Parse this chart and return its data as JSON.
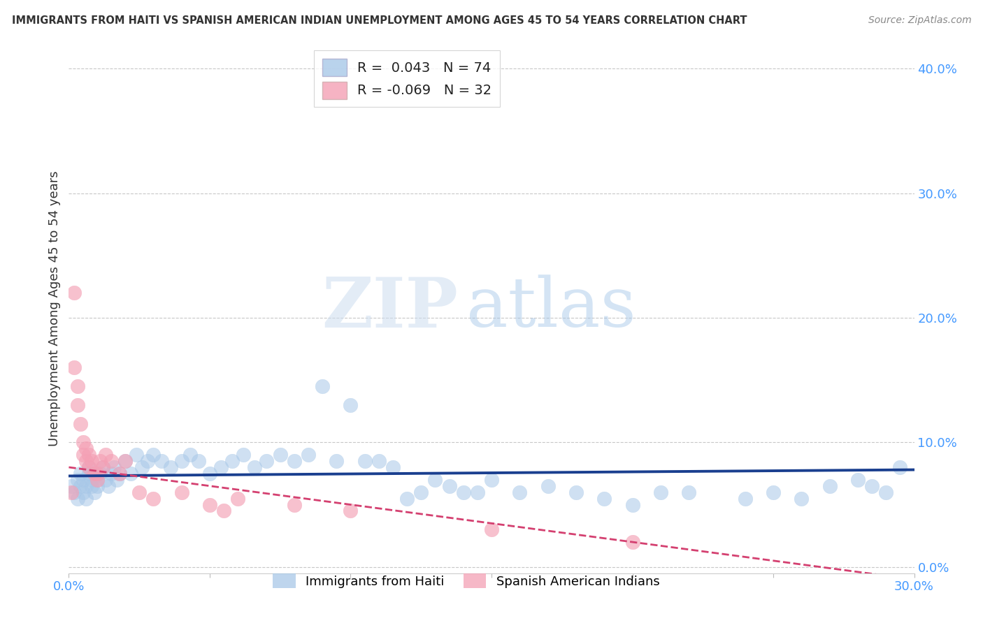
{
  "title": "IMMIGRANTS FROM HAITI VS SPANISH AMERICAN INDIAN UNEMPLOYMENT AMONG AGES 45 TO 54 YEARS CORRELATION CHART",
  "source": "Source: ZipAtlas.com",
  "ylabel": "Unemployment Among Ages 45 to 54 years",
  "xlim": [
    0.0,
    0.3
  ],
  "ylim": [
    -0.005,
    0.42
  ],
  "xticks": [
    0.0,
    0.05,
    0.1,
    0.15,
    0.2,
    0.25,
    0.3
  ],
  "yticks": [
    0.0,
    0.1,
    0.2,
    0.3,
    0.4
  ],
  "ytick_labels_right": [
    "0.0%",
    "10.0%",
    "20.0%",
    "30.0%",
    "40.0%"
  ],
  "xtick_labels": [
    "0.0%",
    "",
    "",
    "",
    "",
    "",
    "30.0%"
  ],
  "blue_color": "#a8c8e8",
  "pink_color": "#f4a0b5",
  "blue_line_color": "#1a3f8f",
  "pink_line_color": "#d44070",
  "grid_color": "#c8c8c8",
  "background_color": "#ffffff",
  "watermark_zip": "ZIP",
  "watermark_atlas": "atlas",
  "legend_r_haiti": " 0.043",
  "legend_n_haiti": "74",
  "legend_r_spanish": "-0.069",
  "legend_n_spanish": "32",
  "title_color": "#333333",
  "source_color": "#888888",
  "axis_label_color": "#333333",
  "tick_color": "#4499ff",
  "haiti_x": [
    0.001,
    0.002,
    0.003,
    0.003,
    0.004,
    0.004,
    0.005,
    0.005,
    0.006,
    0.006,
    0.007,
    0.007,
    0.008,
    0.008,
    0.009,
    0.009,
    0.01,
    0.01,
    0.011,
    0.012,
    0.013,
    0.014,
    0.015,
    0.016,
    0.017,
    0.018,
    0.02,
    0.022,
    0.024,
    0.026,
    0.028,
    0.03,
    0.033,
    0.036,
    0.04,
    0.043,
    0.046,
    0.05,
    0.054,
    0.058,
    0.062,
    0.066,
    0.07,
    0.075,
    0.08,
    0.085,
    0.09,
    0.095,
    0.1,
    0.105,
    0.11,
    0.115,
    0.12,
    0.125,
    0.13,
    0.135,
    0.14,
    0.145,
    0.15,
    0.16,
    0.17,
    0.18,
    0.19,
    0.2,
    0.21,
    0.22,
    0.24,
    0.25,
    0.26,
    0.27,
    0.28,
    0.285,
    0.29,
    0.295
  ],
  "haiti_y": [
    0.065,
    0.06,
    0.07,
    0.055,
    0.065,
    0.075,
    0.06,
    0.07,
    0.055,
    0.065,
    0.075,
    0.08,
    0.065,
    0.07,
    0.06,
    0.075,
    0.065,
    0.07,
    0.075,
    0.08,
    0.07,
    0.065,
    0.075,
    0.08,
    0.07,
    0.075,
    0.085,
    0.075,
    0.09,
    0.08,
    0.085,
    0.09,
    0.085,
    0.08,
    0.085,
    0.09,
    0.085,
    0.075,
    0.08,
    0.085,
    0.09,
    0.08,
    0.085,
    0.09,
    0.085,
    0.09,
    0.145,
    0.085,
    0.13,
    0.085,
    0.085,
    0.08,
    0.055,
    0.06,
    0.07,
    0.065,
    0.06,
    0.06,
    0.07,
    0.06,
    0.065,
    0.06,
    0.055,
    0.05,
    0.06,
    0.06,
    0.055,
    0.06,
    0.055,
    0.065,
    0.07,
    0.065,
    0.06,
    0.08
  ],
  "spanish_x": [
    0.001,
    0.002,
    0.002,
    0.003,
    0.003,
    0.004,
    0.005,
    0.005,
    0.006,
    0.006,
    0.007,
    0.007,
    0.008,
    0.009,
    0.01,
    0.01,
    0.011,
    0.012,
    0.013,
    0.015,
    0.018,
    0.02,
    0.025,
    0.03,
    0.04,
    0.05,
    0.055,
    0.06,
    0.08,
    0.1,
    0.15,
    0.2
  ],
  "spanish_y": [
    0.06,
    0.22,
    0.16,
    0.145,
    0.13,
    0.115,
    0.1,
    0.09,
    0.085,
    0.095,
    0.09,
    0.08,
    0.085,
    0.075,
    0.07,
    0.075,
    0.085,
    0.08,
    0.09,
    0.085,
    0.075,
    0.085,
    0.06,
    0.055,
    0.06,
    0.05,
    0.045,
    0.055,
    0.05,
    0.045,
    0.03,
    0.02
  ]
}
